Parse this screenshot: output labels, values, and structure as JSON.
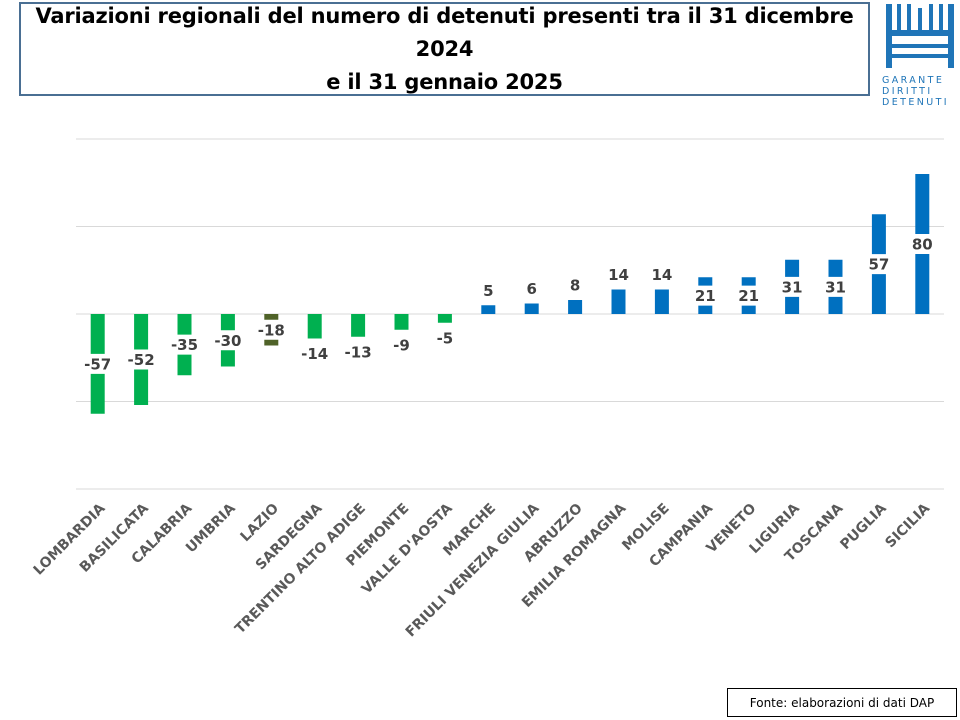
{
  "title": {
    "line1": "Variazioni regionali del numero di detenuti presenti tra il 31 dicembre 2024",
    "line2": "e il 31 gennaio 2025"
  },
  "logo": {
    "icon": "garante-logo-icon",
    "line1": "GARANTE",
    "line2": "DIRITTI",
    "line3": "DETENUTI",
    "color": "#1f75b8"
  },
  "source": "Fonte: elaborazioni di dati DAP",
  "chart_data": {
    "type": "bar",
    "title": "Variazioni regionali del numero di detenuti presenti tra il 31 dicembre 2024 e il 31 gennaio 2025",
    "xlabel": "",
    "ylabel": "",
    "ylim": [
      -100,
      100
    ],
    "grid": true,
    "legend": "none",
    "categories": [
      "LOMBARDIA",
      "BASILICATA",
      "CALABRIA",
      "UMBRIA",
      "LAZIO",
      "SARDEGNA",
      "TRENTINO ALTO ADIGE",
      "PIEMONTE",
      "VALLE D'AOSTA",
      "MARCHE",
      "FRIULI VENEZIA GIULIA",
      "ABRUZZO",
      "EMILIA ROMAGNA",
      "MOLISE",
      "CAMPANIA",
      "VENETO",
      "LIGURIA",
      "TOSCANA",
      "PUGLIA",
      "SICILIA"
    ],
    "values": [
      -57,
      -52,
      -35,
      -30,
      -18,
      -14,
      -13,
      -9,
      -5,
      5,
      6,
      8,
      14,
      14,
      21,
      21,
      31,
      31,
      57,
      80
    ],
    "colors": [
      "#00b050",
      "#00b050",
      "#00b050",
      "#00b050",
      "#4f6228",
      "#00b050",
      "#00b050",
      "#00b050",
      "#00b050",
      "#0070c0",
      "#0070c0",
      "#0070c0",
      "#0070c0",
      "#0070c0",
      "#0070c0",
      "#0070c0",
      "#0070c0",
      "#0070c0",
      "#0070c0",
      "#0070c0"
    ],
    "data_labels": true
  }
}
